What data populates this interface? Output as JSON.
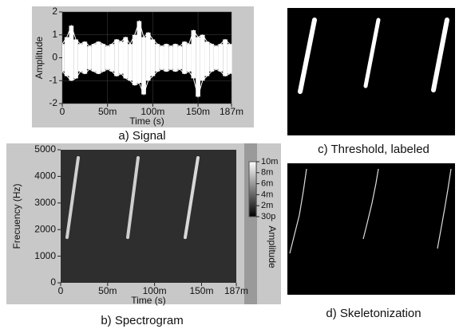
{
  "chart_data": [
    {
      "type": "signal",
      "caption": "a) Signal",
      "xlabel": "Time (s)",
      "ylabel": "Amplitude",
      "x": [
        0,
        0.005,
        0.01,
        0.015,
        0.02,
        0.025,
        0.03,
        0.035,
        0.04,
        0.045,
        0.05,
        0.055,
        0.06,
        0.065,
        0.07,
        0.075,
        0.08,
        0.085,
        0.09,
        0.095,
        0.1,
        0.105,
        0.11,
        0.115,
        0.12,
        0.125,
        0.13,
        0.135,
        0.14,
        0.145,
        0.15,
        0.155,
        0.16,
        0.165,
        0.17,
        0.175,
        0.18,
        0.185
      ],
      "series": [
        {
          "color": "#ffffff",
          "values": [
            0.6,
            0.9,
            1.4,
            0.8,
            0.6,
            0.7,
            0.5,
            0.6,
            0.7,
            0.6,
            0.5,
            0.6,
            0.8,
            0.7,
            0.9,
            0.6,
            1.0,
            1.6,
            0.9,
            1.1,
            0.8,
            0.6,
            0.5,
            0.6,
            0.5,
            0.6,
            0.5,
            0.7,
            0.6,
            1.2,
            0.9,
            1.0,
            0.7,
            0.6,
            0.5,
            0.6,
            0.8,
            0.6
          ]
        },
        {
          "color": "#ffffff",
          "values": [
            -0.6,
            -0.8,
            -1.0,
            -0.9,
            -0.6,
            -0.7,
            -0.5,
            -0.6,
            -0.7,
            -0.6,
            -0.5,
            -0.6,
            -0.8,
            -0.7,
            -0.9,
            -1.0,
            -1.2,
            -1.1,
            -1.6,
            -1.0,
            -0.8,
            -0.6,
            -0.5,
            -0.6,
            -0.5,
            -0.6,
            -0.5,
            -0.7,
            -0.6,
            -0.9,
            -1.7,
            -1.0,
            -0.8,
            -0.6,
            -0.5,
            -0.6,
            -0.8,
            -0.7
          ]
        }
      ],
      "xlim": [
        0,
        0.187
      ],
      "xticks": [
        0,
        {
          "value": 0.05,
          "label": "50m"
        },
        {
          "value": 0.1,
          "label": "100m"
        },
        {
          "value": 0.15,
          "label": "150m"
        },
        {
          "value": 0.187,
          "label": "187m"
        }
      ],
      "ylim": [
        -2,
        2
      ],
      "yticks": [
        -2,
        -1,
        0,
        1,
        2
      ],
      "grid": true
    },
    {
      "type": "spectrogram",
      "caption": "b) Spectrogram",
      "xlabel": "Time (s)",
      "ylabel": "Frecuency (Hz)",
      "colorbar_label": "Amplitude",
      "xlim": [
        0,
        0.187
      ],
      "xticks": [
        0,
        {
          "value": 0.05,
          "label": "50m"
        },
        {
          "value": 0.1,
          "label": "100m"
        },
        {
          "value": 0.15,
          "label": "150m"
        },
        {
          "value": 0.187,
          "label": "187m"
        }
      ],
      "ylim": [
        0,
        5000
      ],
      "yticks": [
        0,
        1000,
        2000,
        3000,
        4000,
        5000
      ],
      "clim": [
        3e-11,
        0.01
      ],
      "cticks": [
        {
          "value": 0.01,
          "label": "10m"
        },
        {
          "value": 0.008,
          "label": "8m"
        },
        {
          "value": 0.006,
          "label": "6m"
        },
        {
          "value": 0.004,
          "label": "4m"
        },
        {
          "value": 0.002,
          "label": "2m"
        },
        {
          "value": 3e-11,
          "label": "30p"
        }
      ]
    }
  ],
  "images": [
    {
      "caption": "c) Threshold, labeled"
    },
    {
      "caption": "d) Skeletonization"
    }
  ]
}
